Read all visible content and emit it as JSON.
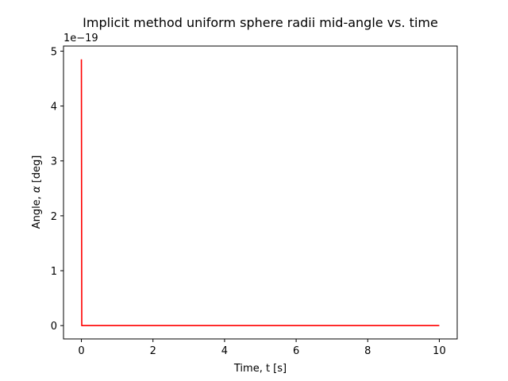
{
  "chart_data": {
    "type": "line",
    "title": "Implicit method uniform sphere radii mid-angle vs. time",
    "xlabel": "Time, t [s]",
    "ylabel_prefix": "Angle, ",
    "ylabel_symbol": "α",
    "ylabel_suffix": " [deg]",
    "y_offset_text": "1e−19",
    "y_scale_exponent": -19,
    "xlim": [
      -0.5,
      10.5
    ],
    "ylim": [
      -0.243,
      5.093
    ],
    "x_ticks": [
      0,
      2,
      4,
      6,
      8,
      10
    ],
    "x_tick_labels": [
      "0",
      "2",
      "4",
      "6",
      "8",
      "10"
    ],
    "y_ticks": [
      0,
      1,
      2,
      3,
      4,
      5
    ],
    "y_tick_labels": [
      "0",
      "1",
      "2",
      "3",
      "4",
      "5"
    ],
    "grid": false,
    "series": [
      {
        "color": "#ff0000",
        "x": [
          0,
          0.01,
          0.02,
          0.05,
          0.1,
          1,
          2,
          3,
          4,
          5,
          6,
          7,
          8,
          9,
          10
        ],
        "y": [
          4.85,
          0,
          0,
          0,
          0,
          0,
          0,
          0,
          0,
          0,
          0,
          0,
          0,
          0,
          0
        ]
      }
    ]
  }
}
